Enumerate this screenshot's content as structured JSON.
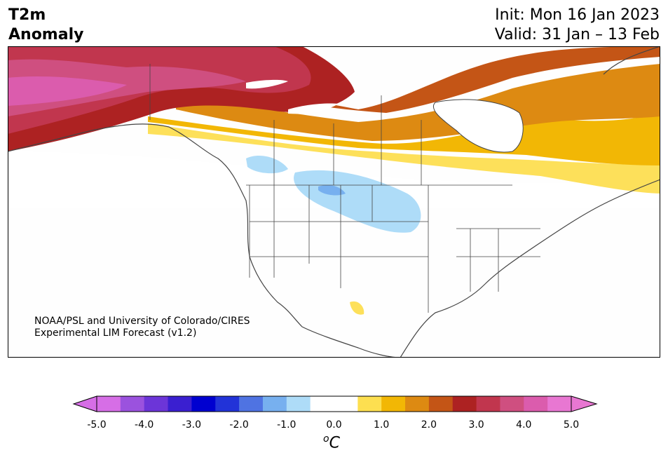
{
  "header": {
    "title_line1": "T2m",
    "title_line2": "Anomaly",
    "init": "Init: Mon 16 Jan 2023",
    "valid": "Valid: 31 Jan – 13 Feb"
  },
  "map": {
    "region": "North America",
    "credit_line1": "NOAA/PSL and University of Colorado/CIRES",
    "credit_line2": "Experimental LIM Forecast (v1.2)",
    "features": [
      "warm-anomaly-alaska-canada",
      "cool-anomaly-northern-plains",
      "warm-spot-mexico"
    ]
  },
  "colorbar": {
    "unit_base": "C",
    "unit_sup": "o",
    "tick_labels": [
      "-5.0",
      "-4.0",
      "-3.0",
      "-2.0",
      "-1.0",
      "0.0",
      "1.0",
      "2.0",
      "3.0",
      "4.0",
      "5.0"
    ],
    "colors": [
      "#d66ee6",
      "#9b52de",
      "#6c35d8",
      "#3a1fd0",
      "#0000d0",
      "#2233d8",
      "#4f73e2",
      "#77b0ef",
      "#aedcf8",
      "#ffffff",
      "#ffffff",
      "#fddf50",
      "#f2b705",
      "#dd8a12",
      "#c45516",
      "#ad2222",
      "#c1364e",
      "#cf4f80",
      "#db5cad",
      "#e877d2"
    ],
    "under_color": "#d66ee6",
    "over_color": "#e877d2"
  }
}
